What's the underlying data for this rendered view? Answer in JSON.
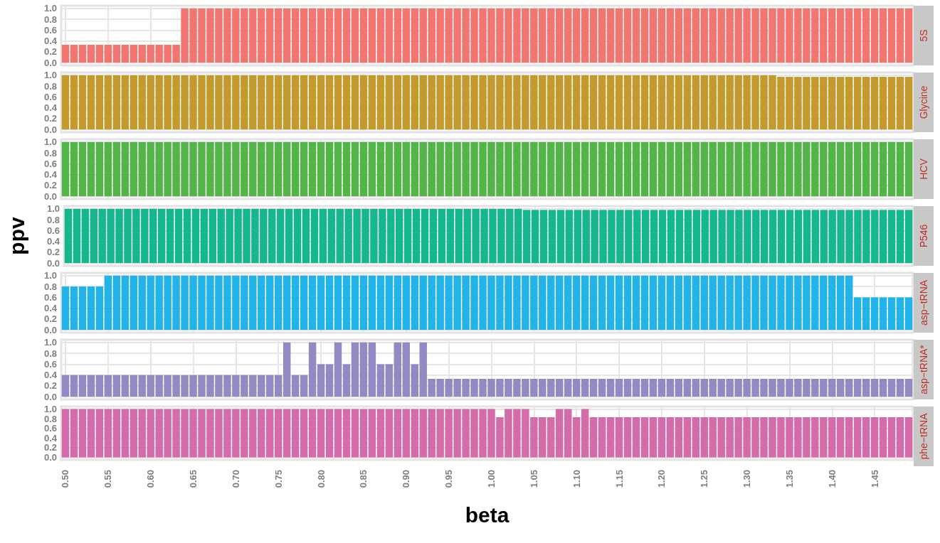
{
  "chart_data": [
    {
      "type": "bar",
      "title": "5S",
      "color": "#f37570",
      "x": [
        0.5,
        0.51,
        0.52,
        0.53,
        0.54,
        0.55,
        0.56,
        0.57,
        0.58,
        0.59,
        0.6,
        0.61,
        0.62,
        0.63,
        0.64,
        0.65,
        0.66,
        0.67,
        0.68,
        0.69,
        0.7,
        0.71,
        0.72,
        0.73,
        0.74,
        0.75,
        0.76,
        0.77,
        0.78,
        0.79,
        0.8,
        0.81,
        0.82,
        0.83,
        0.84,
        0.85,
        0.86,
        0.87,
        0.88,
        0.89,
        0.9,
        0.91,
        0.92,
        0.93,
        0.94,
        0.95,
        0.96,
        0.97,
        0.98,
        0.99,
        1,
        1.01,
        1.02,
        1.03,
        1.04,
        1.05,
        1.06,
        1.07,
        1.08,
        1.09,
        1.1,
        1.11,
        1.12,
        1.13,
        1.14,
        1.15,
        1.16,
        1.17,
        1.18,
        1.19,
        1.2,
        1.21,
        1.22,
        1.23,
        1.24,
        1.25,
        1.26,
        1.27,
        1.28,
        1.29,
        1.3,
        1.31,
        1.32,
        1.33,
        1.34,
        1.35,
        1.36,
        1.37,
        1.38,
        1.39,
        1.4,
        1.41,
        1.42,
        1.43,
        1.44,
        1.45,
        1.46,
        1.47,
        1.48,
        1.49
      ],
      "values": [
        0.33,
        0.33,
        0.33,
        0.33,
        0.33,
        0.33,
        0.33,
        0.33,
        0.33,
        0.33,
        0.33,
        0.33,
        0.33,
        0.33,
        1,
        1,
        1,
        1,
        1,
        1,
        1,
        1,
        1,
        1,
        1,
        1,
        1,
        1,
        1,
        1,
        1,
        1,
        1,
        1,
        1,
        1,
        1,
        1,
        1,
        1,
        1,
        1,
        1,
        1,
        1,
        1,
        1,
        1,
        1,
        1,
        1,
        1,
        1,
        1,
        1,
        1,
        1,
        1,
        1,
        1,
        1,
        1,
        1,
        1,
        1,
        1,
        1,
        1,
        1,
        1,
        1,
        1,
        1,
        1,
        1,
        1,
        1,
        1,
        1,
        1,
        1,
        1,
        1,
        1,
        1,
        1,
        1,
        1,
        1,
        1,
        1,
        1,
        1,
        1,
        1,
        1,
        1,
        1,
        1,
        1
      ],
      "xlim": [
        0.495,
        1.495
      ],
      "xticks": [
        0.5,
        0.55,
        0.6,
        0.65,
        0.7,
        0.75,
        0.8,
        0.85,
        0.9,
        0.95,
        1,
        1.05,
        1.1,
        1.15,
        1.2,
        1.25,
        1.3,
        1.35,
        1.4,
        1.45
      ],
      "ylim": [
        -0.05,
        1.05
      ],
      "yticks": [
        {
          "value": 0,
          "label": "0.0"
        },
        {
          "value": 0.2,
          "label": "0.2"
        },
        {
          "value": 0.4,
          "label": "0.4"
        },
        {
          "value": 0.6,
          "label": "0.6"
        },
        {
          "value": 0.8,
          "label": "0.8"
        },
        {
          "value": 1,
          "label": "1.0"
        }
      ],
      "grid": true,
      "tick_labels": "y"
    },
    {
      "type": "bar",
      "title": "Glycine",
      "color": "#c49a2c",
      "x": [
        0.5,
        0.51,
        0.52,
        0.53,
        0.54,
        0.55,
        0.56,
        0.57,
        0.58,
        0.59,
        0.6,
        0.61,
        0.62,
        0.63,
        0.64,
        0.65,
        0.66,
        0.67,
        0.68,
        0.69,
        0.7,
        0.71,
        0.72,
        0.73,
        0.74,
        0.75,
        0.76,
        0.77,
        0.78,
        0.79,
        0.8,
        0.81,
        0.82,
        0.83,
        0.84,
        0.85,
        0.86,
        0.87,
        0.88,
        0.89,
        0.9,
        0.91,
        0.92,
        0.93,
        0.94,
        0.95,
        0.96,
        0.97,
        0.98,
        0.99,
        1,
        1.01,
        1.02,
        1.03,
        1.04,
        1.05,
        1.06,
        1.07,
        1.08,
        1.09,
        1.1,
        1.11,
        1.12,
        1.13,
        1.14,
        1.15,
        1.16,
        1.17,
        1.18,
        1.19,
        1.2,
        1.21,
        1.22,
        1.23,
        1.24,
        1.25,
        1.26,
        1.27,
        1.28,
        1.29,
        1.3,
        1.31,
        1.32,
        1.33,
        1.34,
        1.35,
        1.36,
        1.37,
        1.38,
        1.39,
        1.4,
        1.41,
        1.42,
        1.43,
        1.44,
        1.45,
        1.46,
        1.47,
        1.48,
        1.49
      ],
      "values": [
        1,
        1,
        1,
        1,
        1,
        1,
        1,
        1,
        1,
        1,
        1,
        1,
        1,
        1,
        1,
        1,
        1,
        1,
        1,
        1,
        1,
        1,
        1,
        1,
        1,
        1,
        1,
        1,
        1,
        1,
        1,
        1,
        1,
        1,
        1,
        1,
        1,
        1,
        1,
        1,
        1,
        1,
        1,
        1,
        1,
        1,
        1,
        1,
        1,
        1,
        1,
        1,
        1,
        1,
        1,
        1,
        1,
        1,
        1,
        1,
        1,
        1,
        1,
        1,
        1,
        1,
        1,
        1,
        1,
        1,
        1,
        1,
        1,
        1,
        1,
        1,
        1,
        1,
        1,
        1,
        1,
        1,
        1,
        1,
        0.97,
        0.97,
        0.97,
        0.97,
        0.97,
        0.97,
        0.97,
        0.97,
        0.97,
        0.97,
        0.97,
        0.97,
        0.97,
        0.97,
        0.97,
        0.97
      ],
      "xlim": [
        0.495,
        1.495
      ],
      "xticks": [
        0.5,
        0.55,
        0.6,
        0.65,
        0.7,
        0.75,
        0.8,
        0.85,
        0.9,
        0.95,
        1,
        1.05,
        1.1,
        1.15,
        1.2,
        1.25,
        1.3,
        1.35,
        1.4,
        1.45
      ],
      "ylim": [
        -0.05,
        1.05
      ],
      "yticks": [
        {
          "value": 0,
          "label": "0.0"
        },
        {
          "value": 0.2,
          "label": "0.2"
        },
        {
          "value": 0.4,
          "label": "0.4"
        },
        {
          "value": 0.6,
          "label": "0.6"
        },
        {
          "value": 0.8,
          "label": "0.8"
        },
        {
          "value": 1,
          "label": "1.0"
        }
      ],
      "grid": true,
      "tick_labels": "y"
    },
    {
      "type": "bar",
      "title": "HCV",
      "color": "#53b447",
      "x": [
        0.5,
        0.51,
        0.52,
        0.53,
        0.54,
        0.55,
        0.56,
        0.57,
        0.58,
        0.59,
        0.6,
        0.61,
        0.62,
        0.63,
        0.64,
        0.65,
        0.66,
        0.67,
        0.68,
        0.69,
        0.7,
        0.71,
        0.72,
        0.73,
        0.74,
        0.75,
        0.76,
        0.77,
        0.78,
        0.79,
        0.8,
        0.81,
        0.82,
        0.83,
        0.84,
        0.85,
        0.86,
        0.87,
        0.88,
        0.89,
        0.9,
        0.91,
        0.92,
        0.93,
        0.94,
        0.95,
        0.96,
        0.97,
        0.98,
        0.99,
        1,
        1.01,
        1.02,
        1.03,
        1.04,
        1.05,
        1.06,
        1.07,
        1.08,
        1.09,
        1.1,
        1.11,
        1.12,
        1.13,
        1.14,
        1.15,
        1.16,
        1.17,
        1.18,
        1.19,
        1.2,
        1.21,
        1.22,
        1.23,
        1.24,
        1.25,
        1.26,
        1.27,
        1.28,
        1.29,
        1.3,
        1.31,
        1.32,
        1.33,
        1.34,
        1.35,
        1.36,
        1.37,
        1.38,
        1.39,
        1.4,
        1.41,
        1.42,
        1.43,
        1.44,
        1.45,
        1.46,
        1.47,
        1.48,
        1.49
      ],
      "values": [
        1,
        1,
        1,
        1,
        1,
        1,
        1,
        1,
        1,
        1,
        1,
        1,
        1,
        1,
        1,
        1,
        1,
        1,
        1,
        1,
        1,
        1,
        1,
        1,
        1,
        1,
        1,
        1,
        1,
        1,
        1,
        1,
        1,
        1,
        1,
        1,
        1,
        1,
        1,
        1,
        1,
        1,
        1,
        1,
        1,
        1,
        1,
        1,
        1,
        1,
        1,
        1,
        1,
        1,
        1,
        1,
        1,
        1,
        1,
        1,
        1,
        1,
        1,
        1,
        1,
        1,
        1,
        1,
        1,
        1,
        1,
        1,
        1,
        1,
        1,
        1,
        1,
        1,
        1,
        1,
        1,
        1,
        1,
        1,
        1,
        1,
        1,
        1,
        1,
        1,
        1,
        1,
        1,
        1,
        1,
        1,
        1,
        1,
        1,
        1
      ],
      "xlim": [
        0.495,
        1.495
      ],
      "xticks": [
        0.5,
        0.55,
        0.6,
        0.65,
        0.7,
        0.75,
        0.8,
        0.85,
        0.9,
        0.95,
        1,
        1.05,
        1.1,
        1.15,
        1.2,
        1.25,
        1.3,
        1.35,
        1.4,
        1.45
      ],
      "ylim": [
        -0.05,
        1.05
      ],
      "yticks": [
        {
          "value": 0,
          "label": "0.0"
        },
        {
          "value": 0.2,
          "label": "0.2"
        },
        {
          "value": 0.4,
          "label": "0.4"
        },
        {
          "value": 0.6,
          "label": "0.6"
        },
        {
          "value": 0.8,
          "label": "0.8"
        },
        {
          "value": 1,
          "label": "1.0"
        }
      ],
      "grid": true,
      "tick_labels": "y"
    },
    {
      "type": "bar",
      "title": "P546",
      "ylabel": "ppv",
      "color": "#16b68f",
      "x": [
        0.5,
        0.51,
        0.52,
        0.53,
        0.54,
        0.55,
        0.56,
        0.57,
        0.58,
        0.59,
        0.6,
        0.61,
        0.62,
        0.63,
        0.64,
        0.65,
        0.66,
        0.67,
        0.68,
        0.69,
        0.7,
        0.71,
        0.72,
        0.73,
        0.74,
        0.75,
        0.76,
        0.77,
        0.78,
        0.79,
        0.8,
        0.81,
        0.82,
        0.83,
        0.84,
        0.85,
        0.86,
        0.87,
        0.88,
        0.89,
        0.9,
        0.91,
        0.92,
        0.93,
        0.94,
        0.95,
        0.96,
        0.97,
        0.98,
        0.99,
        1,
        1.01,
        1.02,
        1.03,
        1.04,
        1.05,
        1.06,
        1.07,
        1.08,
        1.09,
        1.1,
        1.11,
        1.12,
        1.13,
        1.14,
        1.15,
        1.16,
        1.17,
        1.18,
        1.19,
        1.2,
        1.21,
        1.22,
        1.23,
        1.24,
        1.25,
        1.26,
        1.27,
        1.28,
        1.29,
        1.3,
        1.31,
        1.32,
        1.33,
        1.34,
        1.35,
        1.36,
        1.37,
        1.38,
        1.39,
        1.4,
        1.41,
        1.42,
        1.43,
        1.44,
        1.45,
        1.46,
        1.47,
        1.48,
        1.49
      ],
      "values": [
        1,
        1,
        1,
        1,
        1,
        1,
        1,
        1,
        1,
        1,
        1,
        1,
        1,
        1,
        1,
        1,
        1,
        1,
        1,
        1,
        1,
        1,
        1,
        1,
        1,
        1,
        1,
        1,
        1,
        1,
        1,
        1,
        1,
        1,
        1,
        1,
        1,
        1,
        1,
        1,
        1,
        1,
        1,
        1,
        1,
        1,
        1,
        1,
        1,
        1,
        1,
        1,
        1,
        1,
        0.98,
        0.98,
        0.98,
        0.98,
        0.98,
        0.98,
        0.98,
        0.98,
        0.98,
        0.98,
        0.98,
        0.98,
        0.98,
        0.98,
        0.98,
        0.98,
        0.98,
        0.98,
        0.98,
        0.98,
        0.98,
        0.98,
        0.98,
        0.98,
        0.98,
        0.98,
        0.98,
        0.98,
        0.98,
        0.98,
        0.98,
        0.98,
        0.98,
        0.98,
        0.98,
        0.98,
        0.98,
        0.98,
        0.98,
        0.98,
        0.98,
        0.98,
        0.98,
        0.98,
        0.98,
        0.98
      ],
      "xlim": [
        0.495,
        1.495
      ],
      "xticks": [
        0.5,
        0.55,
        0.6,
        0.65,
        0.7,
        0.75,
        0.8,
        0.85,
        0.9,
        0.95,
        1,
        1.05,
        1.1,
        1.15,
        1.2,
        1.25,
        1.3,
        1.35,
        1.4,
        1.45
      ],
      "ylim": [
        -0.05,
        1.05
      ],
      "yticks": [
        {
          "value": 0,
          "label": "0.0"
        },
        {
          "value": 0.2,
          "label": "0.2"
        },
        {
          "value": 0.4,
          "label": "0.4"
        },
        {
          "value": 0.6,
          "label": "0.6"
        },
        {
          "value": 0.8,
          "label": "0.8"
        },
        {
          "value": 1,
          "label": "1.0"
        }
      ],
      "grid": true,
      "tick_labels": "y"
    },
    {
      "type": "bar",
      "title": "asp−tRNA",
      "color": "#22b4e8",
      "x": [
        0.5,
        0.51,
        0.52,
        0.53,
        0.54,
        0.55,
        0.56,
        0.57,
        0.58,
        0.59,
        0.6,
        0.61,
        0.62,
        0.63,
        0.64,
        0.65,
        0.66,
        0.67,
        0.68,
        0.69,
        0.7,
        0.71,
        0.72,
        0.73,
        0.74,
        0.75,
        0.76,
        0.77,
        0.78,
        0.79,
        0.8,
        0.81,
        0.82,
        0.83,
        0.84,
        0.85,
        0.86,
        0.87,
        0.88,
        0.89,
        0.9,
        0.91,
        0.92,
        0.93,
        0.94,
        0.95,
        0.96,
        0.97,
        0.98,
        0.99,
        1,
        1.01,
        1.02,
        1.03,
        1.04,
        1.05,
        1.06,
        1.07,
        1.08,
        1.09,
        1.1,
        1.11,
        1.12,
        1.13,
        1.14,
        1.15,
        1.16,
        1.17,
        1.18,
        1.19,
        1.2,
        1.21,
        1.22,
        1.23,
        1.24,
        1.25,
        1.26,
        1.27,
        1.28,
        1.29,
        1.3,
        1.31,
        1.32,
        1.33,
        1.34,
        1.35,
        1.36,
        1.37,
        1.38,
        1.39,
        1.4,
        1.41,
        1.42,
        1.43,
        1.44,
        1.45,
        1.46,
        1.47,
        1.48,
        1.49
      ],
      "values": [
        0.8,
        0.8,
        0.8,
        0.8,
        0.8,
        1,
        1,
        1,
        1,
        1,
        1,
        1,
        1,
        1,
        1,
        1,
        1,
        1,
        1,
        1,
        1,
        1,
        1,
        1,
        1,
        1,
        1,
        1,
        1,
        1,
        1,
        1,
        1,
        1,
        1,
        1,
        1,
        1,
        1,
        1,
        1,
        1,
        1,
        1,
        1,
        1,
        1,
        1,
        1,
        1,
        1,
        1,
        1,
        1,
        1,
        1,
        1,
        1,
        1,
        1,
        1,
        1,
        1,
        1,
        1,
        1,
        1,
        1,
        1,
        1,
        1,
        1,
        1,
        1,
        1,
        1,
        1,
        1,
        1,
        1,
        1,
        1,
        1,
        1,
        1,
        1,
        1,
        1,
        1,
        1,
        1,
        1,
        1,
        0.6,
        0.6,
        0.6,
        0.6,
        0.6,
        0.6,
        0.6
      ],
      "xlim": [
        0.495,
        1.495
      ],
      "xticks": [
        0.5,
        0.55,
        0.6,
        0.65,
        0.7,
        0.75,
        0.8,
        0.85,
        0.9,
        0.95,
        1,
        1.05,
        1.1,
        1.15,
        1.2,
        1.25,
        1.3,
        1.35,
        1.4,
        1.45
      ],
      "ylim": [
        -0.05,
        1.05
      ],
      "yticks": [
        {
          "value": 0,
          "label": "0.0"
        },
        {
          "value": 0.2,
          "label": "0.2"
        },
        {
          "value": 0.4,
          "label": "0.4"
        },
        {
          "value": 0.6,
          "label": "0.6"
        },
        {
          "value": 0.8,
          "label": "0.8"
        },
        {
          "value": 1,
          "label": "1.0"
        }
      ],
      "grid": true,
      "tick_labels": "y"
    },
    {
      "type": "bar",
      "title": "asp−tRNA*",
      "color": "#9489c2",
      "x": [
        0.5,
        0.51,
        0.52,
        0.53,
        0.54,
        0.55,
        0.56,
        0.57,
        0.58,
        0.59,
        0.6,
        0.61,
        0.62,
        0.63,
        0.64,
        0.65,
        0.66,
        0.67,
        0.68,
        0.69,
        0.7,
        0.71,
        0.72,
        0.73,
        0.74,
        0.75,
        0.76,
        0.77,
        0.78,
        0.79,
        0.8,
        0.81,
        0.82,
        0.83,
        0.84,
        0.85,
        0.86,
        0.87,
        0.88,
        0.89,
        0.9,
        0.91,
        0.92,
        0.93,
        0.94,
        0.95,
        0.96,
        0.97,
        0.98,
        0.99,
        1,
        1.01,
        1.02,
        1.03,
        1.04,
        1.05,
        1.06,
        1.07,
        1.08,
        1.09,
        1.1,
        1.11,
        1.12,
        1.13,
        1.14,
        1.15,
        1.16,
        1.17,
        1.18,
        1.19,
        1.2,
        1.21,
        1.22,
        1.23,
        1.24,
        1.25,
        1.26,
        1.27,
        1.28,
        1.29,
        1.3,
        1.31,
        1.32,
        1.33,
        1.34,
        1.35,
        1.36,
        1.37,
        1.38,
        1.39,
        1.4,
        1.41,
        1.42,
        1.43,
        1.44,
        1.45,
        1.46,
        1.47,
        1.48,
        1.49
      ],
      "values": [
        0.4,
        0.4,
        0.4,
        0.4,
        0.4,
        0.4,
        0.4,
        0.4,
        0.4,
        0.4,
        0.4,
        0.4,
        0.4,
        0.4,
        0.4,
        0.4,
        0.4,
        0.4,
        0.4,
        0.4,
        0.4,
        0.4,
        0.4,
        0.4,
        0.4,
        0.4,
        1,
        0.4,
        0.4,
        1,
        0.6,
        0.6,
        1,
        0.6,
        1,
        1,
        1,
        0.6,
        0.6,
        1,
        1,
        0.6,
        1,
        0.33,
        0.33,
        0.33,
        0.33,
        0.33,
        0.33,
        0.33,
        0.33,
        0.33,
        0.33,
        0.33,
        0.33,
        0.33,
        0.33,
        0.33,
        0.33,
        0.33,
        0.33,
        0.33,
        0.33,
        0.33,
        0.33,
        0.33,
        0.33,
        0.33,
        0.33,
        0.33,
        0.33,
        0.33,
        0.33,
        0.33,
        0.33,
        0.33,
        0.33,
        0.33,
        0.33,
        0.33,
        0.33,
        0.33,
        0.33,
        0.33,
        0.33,
        0.33,
        0.33,
        0.33,
        0.33,
        0.33,
        0.33,
        0.33,
        0.33,
        0.33,
        0.33,
        0.33,
        0.33,
        0.33,
        0.33,
        0.33
      ],
      "xlim": [
        0.495,
        1.495
      ],
      "xticks": [
        0.5,
        0.55,
        0.6,
        0.65,
        0.7,
        0.75,
        0.8,
        0.85,
        0.9,
        0.95,
        1,
        1.05,
        1.1,
        1.15,
        1.2,
        1.25,
        1.3,
        1.35,
        1.4,
        1.45
      ],
      "ylim": [
        -0.05,
        1.05
      ],
      "yticks": [
        {
          "value": 0,
          "label": "0.0"
        },
        {
          "value": 0.2,
          "label": "0.2"
        },
        {
          "value": 0.4,
          "label": "0.4"
        },
        {
          "value": 0.6,
          "label": "0.6"
        },
        {
          "value": 0.8,
          "label": "0.8"
        },
        {
          "value": 1,
          "label": "1.0"
        }
      ],
      "grid": true,
      "tick_labels": "y"
    },
    {
      "type": "bar",
      "title": "phe−tRNA",
      "xlabel": "beta",
      "color": "#d56ba9",
      "x": [
        0.5,
        0.51,
        0.52,
        0.53,
        0.54,
        0.55,
        0.56,
        0.57,
        0.58,
        0.59,
        0.6,
        0.61,
        0.62,
        0.63,
        0.64,
        0.65,
        0.66,
        0.67,
        0.68,
        0.69,
        0.7,
        0.71,
        0.72,
        0.73,
        0.74,
        0.75,
        0.76,
        0.77,
        0.78,
        0.79,
        0.8,
        0.81,
        0.82,
        0.83,
        0.84,
        0.85,
        0.86,
        0.87,
        0.88,
        0.89,
        0.9,
        0.91,
        0.92,
        0.93,
        0.94,
        0.95,
        0.96,
        0.97,
        0.98,
        0.99,
        1,
        1.01,
        1.02,
        1.03,
        1.04,
        1.05,
        1.06,
        1.07,
        1.08,
        1.09,
        1.1,
        1.11,
        1.12,
        1.13,
        1.14,
        1.15,
        1.16,
        1.17,
        1.18,
        1.19,
        1.2,
        1.21,
        1.22,
        1.23,
        1.24,
        1.25,
        1.26,
        1.27,
        1.28,
        1.29,
        1.3,
        1.31,
        1.32,
        1.33,
        1.34,
        1.35,
        1.36,
        1.37,
        1.38,
        1.39,
        1.4,
        1.41,
        1.42,
        1.43,
        1.44,
        1.45,
        1.46,
        1.47,
        1.48,
        1.49
      ],
      "values": [
        1,
        1,
        1,
        1,
        1,
        1,
        1,
        1,
        1,
        1,
        1,
        1,
        1,
        1,
        1,
        1,
        1,
        1,
        1,
        1,
        1,
        1,
        1,
        1,
        1,
        1,
        1,
        1,
        1,
        1,
        1,
        1,
        1,
        1,
        1,
        1,
        1,
        1,
        1,
        1,
        1,
        1,
        1,
        1,
        1,
        1,
        1,
        1,
        1,
        1,
        1,
        0.83,
        1,
        1,
        1,
        0.83,
        0.83,
        0.83,
        1,
        1,
        0.83,
        1,
        0.83,
        0.83,
        0.83,
        0.83,
        0.83,
        0.83,
        0.83,
        0.83,
        0.83,
        0.83,
        0.83,
        0.83,
        0.83,
        0.83,
        0.83,
        0.83,
        0.83,
        0.83,
        0.83,
        0.83,
        0.83,
        0.83,
        0.83,
        0.83,
        0.83,
        0.83,
        0.83,
        0.83,
        0.83,
        0.83,
        0.83,
        0.83,
        0.83,
        0.83,
        0.83,
        0.83,
        0.83,
        0.83
      ],
      "xlim": [
        0.495,
        1.495
      ],
      "xticks": [
        {
          "value": 0.5,
          "label": "0.50"
        },
        {
          "value": 0.55,
          "label": "0.55"
        },
        {
          "value": 0.6,
          "label": "0.60"
        },
        {
          "value": 0.65,
          "label": "0.65"
        },
        {
          "value": 0.7,
          "label": "0.70"
        },
        {
          "value": 0.75,
          "label": "0.75"
        },
        {
          "value": 0.8,
          "label": "0.80"
        },
        {
          "value": 0.85,
          "label": "0.85"
        },
        {
          "value": 0.9,
          "label": "0.90"
        },
        {
          "value": 0.95,
          "label": "0.95"
        },
        {
          "value": 1,
          "label": "1.00"
        },
        {
          "value": 1.05,
          "label": "1.05"
        },
        {
          "value": 1.1,
          "label": "1.10"
        },
        {
          "value": 1.15,
          "label": "1.15"
        },
        {
          "value": 1.2,
          "label": "1.20"
        },
        {
          "value": 1.25,
          "label": "1.25"
        },
        {
          "value": 1.3,
          "label": "1.30"
        },
        {
          "value": 1.35,
          "label": "1.35"
        },
        {
          "value": 1.4,
          "label": "1.40"
        },
        {
          "value": 1.45,
          "label": "1.45"
        }
      ],
      "ylim": [
        -0.05,
        1.05
      ],
      "yticks": [
        {
          "value": 0,
          "label": "0.0"
        },
        {
          "value": 0.2,
          "label": "0.2"
        },
        {
          "value": 0.4,
          "label": "0.4"
        },
        {
          "value": 0.6,
          "label": "0.6"
        },
        {
          "value": 0.8,
          "label": "0.8"
        },
        {
          "value": 1,
          "label": "1.0"
        }
      ],
      "grid": true
    }
  ]
}
